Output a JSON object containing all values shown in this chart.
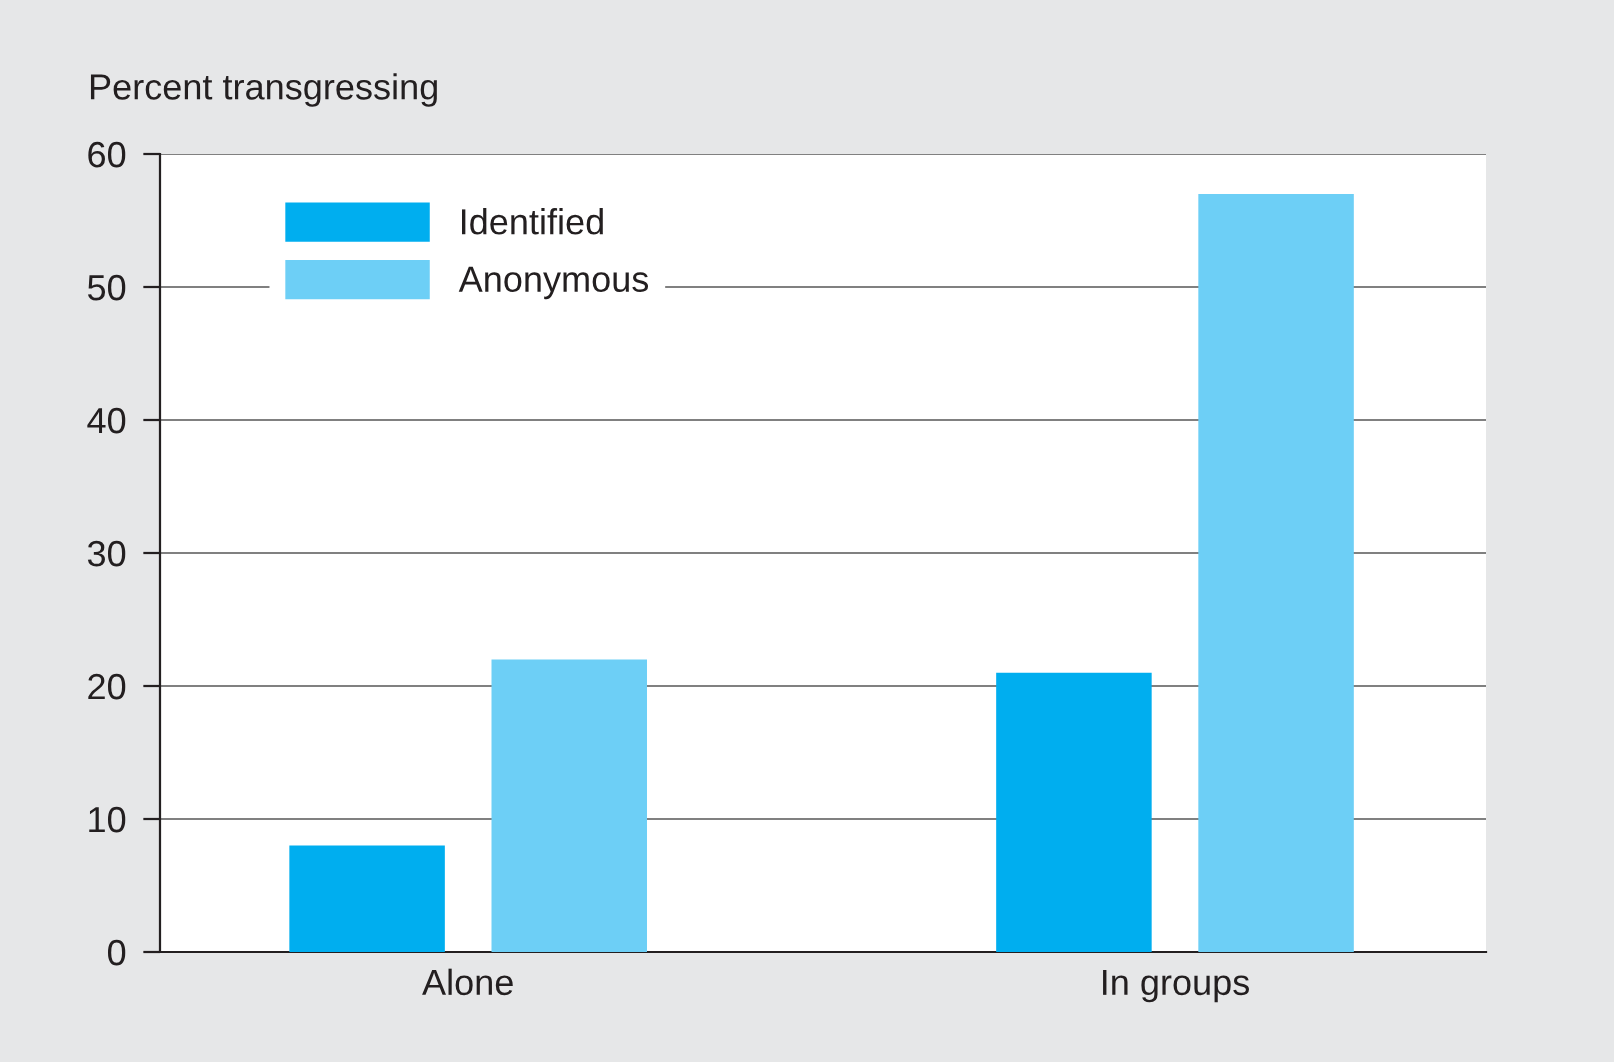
{
  "chart_data": {
    "type": "bar",
    "ylabel": "Percent transgressing",
    "categories": [
      "Alone",
      "In groups"
    ],
    "series": [
      {
        "name": "Identified",
        "color": "#00aeef",
        "values": [
          8,
          21
        ]
      },
      {
        "name": "Anonymous",
        "color": "#6dcff6",
        "values": [
          22,
          57
        ]
      }
    ],
    "ylim": [
      0,
      60
    ],
    "yticks": [
      0,
      10,
      20,
      30,
      40,
      50,
      60
    ],
    "grid": "y",
    "legend": "top left"
  }
}
